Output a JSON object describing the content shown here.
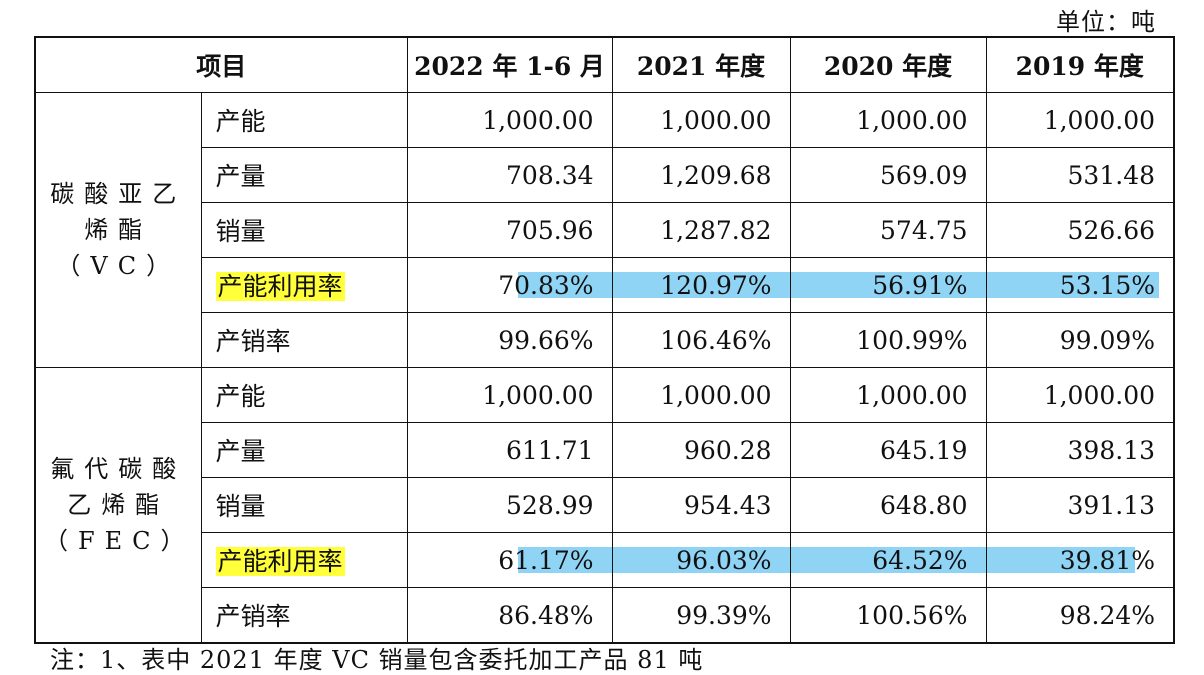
{
  "unit_label": "单位：吨",
  "table": {
    "header": {
      "item": "项目",
      "periods": [
        "2022 年 1-6 月",
        "2021 年度",
        "2020 年度",
        "2019 年度"
      ]
    },
    "groups": [
      {
        "name": "碳酸亚乙烯酯（VC）",
        "rows": [
          {
            "label": "产能",
            "values": [
              "1,000.00",
              "1,000.00",
              "1,000.00",
              "1,000.00"
            ]
          },
          {
            "label": "产量",
            "values": [
              "708.34",
              "1,209.68",
              "569.09",
              "531.48"
            ]
          },
          {
            "label": "销量",
            "values": [
              "705.96",
              "1,287.82",
              "574.75",
              "526.66"
            ]
          },
          {
            "label": "产能利用率",
            "values": [
              "70.83%",
              "120.97%",
              "56.91%",
              "53.15%"
            ]
          },
          {
            "label": "产销率",
            "values": [
              "99.66%",
              "106.46%",
              "100.99%",
              "99.09%"
            ]
          }
        ]
      },
      {
        "name": "氟代碳酸乙烯酯（FEC）",
        "rows": [
          {
            "label": "产能",
            "values": [
              "1,000.00",
              "1,000.00",
              "1,000.00",
              "1,000.00"
            ]
          },
          {
            "label": "产量",
            "values": [
              "611.71",
              "960.28",
              "645.19",
              "398.13"
            ]
          },
          {
            "label": "销量",
            "values": [
              "528.99",
              "954.43",
              "648.80",
              "391.13"
            ]
          },
          {
            "label": "产能利用率",
            "values": [
              "61.17%",
              "96.03%",
              "64.52%",
              "39.81%"
            ]
          },
          {
            "label": "产销率",
            "values": [
              "86.48%",
              "99.39%",
              "100.56%",
              "98.24%"
            ]
          }
        ]
      }
    ]
  },
  "highlight_colors": {
    "label": "#ffff3a",
    "row": "#8fd3f5"
  },
  "note": "注：1、表中 2021 年度 VC 销量包含委托加工产品 81 吨"
}
